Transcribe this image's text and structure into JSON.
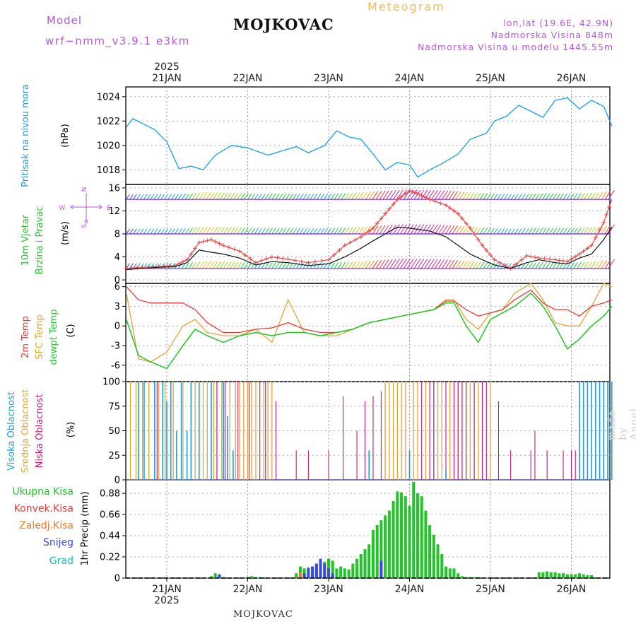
{
  "header": {
    "model_label": "Model",
    "model_name": "wrf−nmm_v3.9.1  e3km",
    "title": "MOJKOVAC",
    "meteogram": "Meteogram",
    "lonlat": "lon,lat (19.6E, 42.9N)",
    "elevation": "Nadmorska Visina 848m",
    "model_elevation": "Nadmorska Visina u modelu 1445.55m"
  },
  "footer": {
    "station": "MOJKOVAC"
  },
  "watermark": "made by Angel",
  "colors": {
    "pressure": "#1a9fe0",
    "temp2m": "#e83a3a",
    "sfc": "#e0a63a",
    "dewpt": "#22c42a",
    "high_cloud": "#1a9fe0",
    "mid_cloud": "#e0a63a",
    "low_cloud": "#c8187a",
    "total_precip": "#22c42a",
    "conv_precip": "#e83a3a",
    "frz_precip": "#f07a28",
    "snow": "#3b4bd8",
    "hail": "#20b8b8",
    "purple": "#b35ad8"
  },
  "chart_data": [
    {
      "type": "line",
      "name": "pressure",
      "ylabel": "(hPa)",
      "side_label": "Pritisak na nivou mora",
      "ylim": [
        1016.8,
        1024.8
      ],
      "yticks": [
        1018,
        1020,
        1022,
        1024
      ],
      "x_days": [
        -0.5,
        -0.42,
        -0.3,
        -0.15,
        0,
        0.15,
        0.3,
        0.45,
        0.6,
        0.8,
        1.0,
        1.25,
        1.4,
        1.6,
        1.75,
        1.95,
        2.1,
        2.25,
        2.4,
        2.55,
        2.7,
        2.85,
        3.0,
        3.1,
        3.25,
        3.4,
        3.6,
        3.75,
        3.95,
        4.05,
        4.2,
        4.35,
        4.5,
        4.65,
        4.8,
        4.95,
        5.1,
        5.25,
        5.4,
        5.5
      ],
      "values": [
        1021.5,
        1022.2,
        1021.8,
        1021.3,
        1020.3,
        1018.1,
        1018.3,
        1018.0,
        1019.2,
        1020.0,
        1019.8,
        1019.2,
        1019.5,
        1019.9,
        1019.4,
        1020.0,
        1021.2,
        1020.7,
        1020.5,
        1019.3,
        1018.0,
        1018.6,
        1018.4,
        1017.4,
        1018.0,
        1018.5,
        1019.3,
        1020.5,
        1021.0,
        1022.0,
        1022.4,
        1023.3,
        1022.8,
        1022.3,
        1023.7,
        1023.9,
        1023.0,
        1023.7,
        1023.2,
        1021.6
      ]
    },
    {
      "type": "line",
      "name": "wind",
      "ylabel": "(m/s)",
      "side_label_1": "10m Vjetar",
      "side_label_2": "Brzina i Pravac",
      "compass": {
        "n": "N",
        "s": "S",
        "w": "W",
        "e": "E",
        "alpha": "α"
      },
      "ylim": [
        -0.6,
        16.6
      ],
      "yticks": [
        0,
        4,
        8,
        12,
        16
      ],
      "barb_levels": [
        2,
        8,
        14
      ],
      "x_days": [
        -0.5,
        -0.3,
        -0.1,
        0.1,
        0.25,
        0.4,
        0.55,
        0.7,
        0.9,
        1.1,
        1.3,
        1.5,
        1.75,
        2.0,
        2.2,
        2.4,
        2.55,
        2.7,
        2.85,
        3.0,
        3.1,
        3.25,
        3.45,
        3.6,
        3.75,
        3.9,
        4.05,
        4.25,
        4.45,
        4.6,
        4.8,
        4.95,
        5.1,
        5.25,
        5.4,
        5.5
      ],
      "gust": [
        2.0,
        2.2,
        2.3,
        2.5,
        3.5,
        6.5,
        7.0,
        6.0,
        5.0,
        3.0,
        4.0,
        3.6,
        3.0,
        3.5,
        6.0,
        7.5,
        9.0,
        11.5,
        14.0,
        15.5,
        15.0,
        14.0,
        13.0,
        11.5,
        9.0,
        6.0,
        3.5,
        2.0,
        4.2,
        3.8,
        3.5,
        3.2,
        4.5,
        6.0,
        10.0,
        14.0
      ],
      "speed": [
        1.8,
        2.0,
        2.2,
        2.3,
        3.0,
        5.2,
        4.8,
        4.5,
        3.8,
        2.6,
        3.2,
        3.0,
        2.5,
        2.8,
        4.0,
        5.5,
        6.8,
        8.0,
        9.2,
        9.0,
        8.8,
        8.5,
        7.5,
        6.0,
        4.5,
        3.5,
        2.6,
        2.0,
        3.0,
        3.5,
        3.0,
        2.8,
        3.8,
        4.5,
        7.0,
        9.2
      ]
    },
    {
      "type": "line",
      "name": "temperature",
      "ylabel": "(C)",
      "side_label_1": "2m Temp",
      "side_label_2": "SFC Temp",
      "side_label_3": "dewpt Temp",
      "ylim": [
        -8.5,
        6.5
      ],
      "yticks": [
        -6,
        -3,
        0,
        3,
        6
      ],
      "x_days": [
        -0.5,
        -0.35,
        -0.2,
        0,
        0.2,
        0.35,
        0.5,
        0.7,
        0.9,
        1.1,
        1.3,
        1.5,
        1.7,
        1.9,
        2.1,
        2.3,
        2.5,
        2.7,
        2.9,
        3.1,
        3.3,
        3.45,
        3.55,
        3.7,
        3.85,
        4.0,
        4.15,
        4.3,
        4.5,
        4.65,
        4.8,
        4.95,
        5.1,
        5.25,
        5.4,
        5.5
      ],
      "t2m": [
        6.0,
        4.0,
        3.5,
        3.5,
        3.5,
        2.5,
        0.5,
        -1.0,
        -1.0,
        -0.5,
        -0.3,
        0.5,
        -0.5,
        -1.0,
        -1.0,
        -0.5,
        0.5,
        1.0,
        1.5,
        2.0,
        2.5,
        3.8,
        3.8,
        2.5,
        1.5,
        2.0,
        2.5,
        4.0,
        5.5,
        3.5,
        2.5,
        2.5,
        1.5,
        3.0,
        3.5,
        4.0
      ],
      "sfc": [
        5.0,
        -5.0,
        -5.5,
        -4.0,
        0.0,
        1.0,
        -1.0,
        -1.5,
        -1.5,
        -0.5,
        -2.5,
        4.0,
        -1.0,
        -1.5,
        -1.5,
        -0.5,
        0.5,
        1.0,
        1.5,
        2.0,
        2.5,
        4.0,
        4.0,
        1.0,
        -0.5,
        2.0,
        2.5,
        5.0,
        6.5,
        4.0,
        0.5,
        0.0,
        0.0,
        3.0,
        6.5,
        6.0
      ],
      "dewpt": [
        1.0,
        -4.5,
        -5.5,
        -6.5,
        -3.0,
        -0.5,
        -1.5,
        -2.5,
        -1.5,
        -1.0,
        -1.5,
        -1.0,
        -1.0,
        -1.5,
        -1.0,
        -0.5,
        0.5,
        1.0,
        1.5,
        2.0,
        2.5,
        3.5,
        3.5,
        0.0,
        -2.5,
        1.0,
        2.0,
        3.0,
        5.0,
        3.0,
        0.0,
        -3.5,
        -2.0,
        0.0,
        1.5,
        3.0
      ]
    },
    {
      "type": "bar",
      "name": "clouds",
      "ylabel": "(%)",
      "side_label_1": "Visoka Oblacnost",
      "side_label_2": "Srednja Oblacnost",
      "side_label_3": "Niska Oblacnost",
      "ylim": [
        0,
        100
      ],
      "yticks": [
        0,
        25,
        50,
        75,
        100
      ],
      "high": [
        [
          -0.35,
          100
        ],
        [
          -0.28,
          100
        ],
        [
          -0.15,
          100
        ],
        [
          -0.05,
          100
        ],
        [
          0.0,
          80
        ],
        [
          0.05,
          100
        ],
        [
          0.12,
          50
        ],
        [
          0.18,
          100
        ],
        [
          0.25,
          50
        ],
        [
          0.3,
          100
        ],
        [
          0.4,
          100
        ],
        [
          0.55,
          100
        ],
        [
          0.7,
          100
        ],
        [
          0.75,
          65
        ],
        [
          0.82,
          30
        ],
        [
          2.5,
          30
        ],
        [
          3.0,
          30
        ],
        [
          3.45,
          10
        ],
        [
          4.7,
          0
        ],
        [
          5.0,
          0
        ],
        [
          5.1,
          100
        ],
        [
          5.15,
          100
        ],
        [
          5.2,
          100
        ],
        [
          5.25,
          100
        ],
        [
          5.3,
          100
        ],
        [
          5.35,
          100
        ],
        [
          5.4,
          100
        ],
        [
          5.45,
          100
        ],
        [
          5.5,
          100
        ]
      ],
      "mid": [
        [
          -0.45,
          100
        ],
        [
          -0.38,
          100
        ],
        [
          -0.3,
          100
        ],
        [
          -0.22,
          100
        ],
        [
          -0.1,
          100
        ],
        [
          -0.02,
          100
        ],
        [
          0.08,
          100
        ],
        [
          0.2,
          100
        ],
        [
          0.35,
          100
        ],
        [
          0.45,
          100
        ],
        [
          0.5,
          100
        ],
        [
          0.58,
          100
        ],
        [
          0.62,
          100
        ],
        [
          0.68,
          100
        ],
        [
          0.78,
          100
        ],
        [
          0.85,
          100
        ],
        [
          0.9,
          100
        ],
        [
          0.95,
          100
        ],
        [
          1.0,
          100
        ],
        [
          1.05,
          100
        ],
        [
          1.1,
          100
        ],
        [
          1.2,
          100
        ],
        [
          1.25,
          100
        ],
        [
          1.3,
          100
        ],
        [
          2.7,
          100
        ],
        [
          2.75,
          100
        ],
        [
          2.8,
          100
        ],
        [
          2.85,
          100
        ],
        [
          2.9,
          100
        ],
        [
          2.95,
          100
        ],
        [
          3.05,
          100
        ],
        [
          3.1,
          100
        ],
        [
          3.2,
          100
        ],
        [
          3.3,
          100
        ],
        [
          3.35,
          100
        ],
        [
          3.4,
          100
        ],
        [
          3.5,
          100
        ],
        [
          3.55,
          100
        ],
        [
          3.6,
          100
        ],
        [
          3.65,
          100
        ],
        [
          3.7,
          100
        ],
        [
          3.75,
          100
        ],
        [
          3.8,
          100
        ],
        [
          3.85,
          100
        ],
        [
          3.9,
          100
        ],
        [
          4.0,
          100
        ]
      ],
      "low": [
        [
          -0.12,
          100
        ],
        [
          0.62,
          100
        ],
        [
          0.72,
          100
        ],
        [
          0.88,
          100
        ],
        [
          1.02,
          100
        ],
        [
          1.15,
          100
        ],
        [
          1.22,
          100
        ],
        [
          1.35,
          80
        ],
        [
          1.6,
          30
        ],
        [
          1.75,
          30
        ],
        [
          2.0,
          30
        ],
        [
          2.18,
          85
        ],
        [
          2.35,
          50
        ],
        [
          2.45,
          80
        ],
        [
          2.55,
          85
        ],
        [
          2.65,
          90
        ],
        [
          3.15,
          100
        ],
        [
          3.25,
          100
        ],
        [
          3.3,
          100
        ],
        [
          3.45,
          100
        ],
        [
          3.55,
          100
        ],
        [
          3.6,
          100
        ],
        [
          3.65,
          100
        ],
        [
          3.7,
          100
        ],
        [
          3.8,
          100
        ],
        [
          3.9,
          100
        ],
        [
          3.95,
          100
        ],
        [
          4.1,
          80
        ],
        [
          4.25,
          30
        ],
        [
          4.5,
          30
        ],
        [
          4.55,
          50
        ],
        [
          4.7,
          30
        ],
        [
          4.9,
          30
        ],
        [
          5.0,
          30
        ],
        [
          5.05,
          30
        ],
        [
          5.15,
          40
        ],
        [
          5.2,
          30
        ],
        [
          5.3,
          63
        ],
        [
          5.35,
          30
        ],
        [
          5.45,
          30
        ]
      ]
    },
    {
      "type": "bar",
      "name": "precipitation",
      "ylabel": "1hr Precip (mm)",
      "legend": [
        "Ukupna Kisa",
        "Konvek.Kisa",
        "Zaledj.Kisa",
        "Snijeg",
        "Grad"
      ],
      "ylim": [
        0,
        1.02
      ],
      "yticks": [
        0,
        0.22,
        0.44,
        0.66,
        0.88
      ],
      "x_days": [
        0.55,
        0.6,
        0.65,
        0.7,
        1.0,
        1.05,
        1.1,
        1.15,
        1.6,
        1.65,
        1.7,
        1.75,
        1.8,
        1.85,
        1.9,
        1.95,
        2.0,
        2.05,
        2.1,
        2.15,
        2.2,
        2.25,
        2.3,
        2.35,
        2.4,
        2.45,
        2.5,
        2.55,
        2.6,
        2.65,
        2.7,
        2.75,
        2.8,
        2.85,
        2.9,
        2.95,
        3.0,
        3.05,
        3.1,
        3.15,
        3.2,
        3.25,
        3.3,
        3.35,
        3.4,
        3.45,
        3.5,
        3.55,
        3.6,
        3.65,
        3.7,
        3.75,
        3.8,
        3.85,
        4.6,
        4.65,
        4.7,
        4.75,
        4.8,
        4.85,
        4.9,
        4.95,
        5.0,
        5.05,
        5.1,
        5.15,
        5.2,
        5.25
      ],
      "total": [
        0.02,
        0.05,
        0.03,
        0.01,
        0.01,
        0.02,
        0.01,
        0.01,
        0.05,
        0.12,
        0.1,
        0.11,
        0.12,
        0.15,
        0.16,
        0.17,
        0.2,
        0.18,
        0.1,
        0.12,
        0.1,
        0.09,
        0.15,
        0.2,
        0.25,
        0.3,
        0.35,
        0.5,
        0.55,
        0.6,
        0.65,
        0.7,
        0.8,
        0.9,
        0.89,
        0.85,
        0.75,
        1.0,
        0.88,
        0.85,
        0.7,
        0.55,
        0.45,
        0.35,
        0.25,
        0.12,
        0.1,
        0.1,
        0.05,
        0.02,
        0.01,
        0.01,
        0.01,
        0.01,
        0.06,
        0.06,
        0.07,
        0.06,
        0.06,
        0.05,
        0.05,
        0.04,
        0.04,
        0.04,
        0.05,
        0.04,
        0.03,
        0.03
      ],
      "snow": [
        0.0,
        0.0,
        0.04,
        0.0,
        0.0,
        0.0,
        0.0,
        0.0,
        0.0,
        0.0,
        0.05,
        0.1,
        0.12,
        0.15,
        0.2,
        0.15,
        0.1,
        0.05,
        0.0,
        0.0,
        0.0,
        0.0,
        0.0,
        0.0,
        0.0,
        0.0,
        0.0,
        0.0,
        0.0,
        0.18,
        0.0,
        0.0,
        0.0,
        0.0,
        0.0,
        0.0,
        0.0,
        0.0,
        0.0,
        0.0,
        0.0,
        0.0,
        0.0,
        0.0,
        0.0,
        0.0,
        0.0,
        0.0,
        0.0,
        0.0,
        0.0,
        0.0,
        0.0,
        0.0,
        0.0,
        0.0,
        0.0,
        0.0,
        0.0,
        0.0,
        0.0,
        0.0,
        0.0,
        0.0,
        0.0,
        0.0,
        0.0,
        0.0
      ],
      "frz": [
        0.0,
        0.0,
        0.0,
        0.0,
        0.0,
        0.0,
        0.0,
        0.0,
        0.0,
        0.06,
        0.0,
        0.0,
        0.0,
        0.0,
        0.0,
        0.0,
        0.0,
        0.0,
        0.0,
        0.0,
        0.0,
        0.0,
        0.0,
        0.0,
        0.0,
        0.0,
        0.0,
        0.0,
        0.0,
        0.0,
        0.0,
        0.0,
        0.0,
        0.0,
        0.0,
        0.0,
        0.0,
        0.0,
        0.0,
        0.0,
        0.0,
        0.0,
        0.0,
        0.0,
        0.0,
        0.0,
        0.0,
        0.0,
        0.0,
        0.0,
        0.0,
        0.0,
        0.0,
        0.0,
        0.0,
        0.0,
        0.0,
        0.0,
        0.0,
        0.0,
        0.0,
        0.0,
        0.0,
        0.0,
        0.0,
        0.0,
        0.0,
        0.0
      ]
    }
  ],
  "time_axis": {
    "year": "2025",
    "days": [
      "21JAN",
      "22JAN",
      "23JAN",
      "24JAN",
      "25JAN",
      "26JAN"
    ]
  }
}
